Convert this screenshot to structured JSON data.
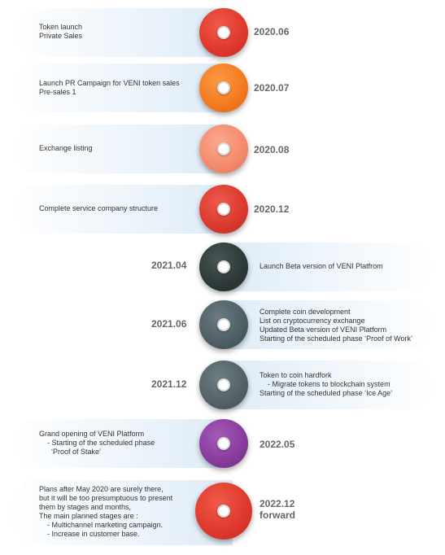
{
  "milestones": [
    {
      "date": "2020.06",
      "text": "Token launch\nPrivate Sales",
      "color": "#e03a2e",
      "side": "left"
    },
    {
      "date": "2020.07",
      "text": "Launch PR Campaign for VENI token sales\nPre-sales 1",
      "color": "#f47c20",
      "side": "left"
    },
    {
      "date": "2020.08",
      "text": "Exchange listing",
      "color": "#f58c6e",
      "side": "left"
    },
    {
      "date": "2020.12",
      "text": "Complete service company structure",
      "color": "#dc3b2f",
      "side": "left"
    },
    {
      "date": "2021.04",
      "text": "Launch Beta version of VENI Platfrom",
      "color": "#2f3b3a",
      "side": "right"
    },
    {
      "date": "2021.06",
      "text": "Complete coin development\nList on cryptocurrency exchange\nUpdated Beta version of VENI Platform\nStarting of the scheduled phase ‘Proof of Work’",
      "color": "#4f6166",
      "side": "right"
    },
    {
      "date": "2021.12",
      "text": "Token to coin hardfork\n    - Migrate tokens to blockchain system\nStarting of the scheduled phase ‘Ice Age’",
      "color": "#546469",
      "side": "right"
    },
    {
      "date": "2022.05",
      "text": "Grand opening of VENI Platform\n    - Starting of the scheduled phase\n      ‘Proof of Stake’",
      "color": "#8a3d9e",
      "side": "left"
    },
    {
      "date": "2022.12\nforward",
      "text": "Plans after May 2020 are surely there,\nbut it will be too presumptuous to present\nthem by stages and months,\nThe main planned stages are :\n    - Multichannel marketing campaign.\n    - Increase in customer base.",
      "color": "#e03a2e",
      "side": "left"
    }
  ]
}
